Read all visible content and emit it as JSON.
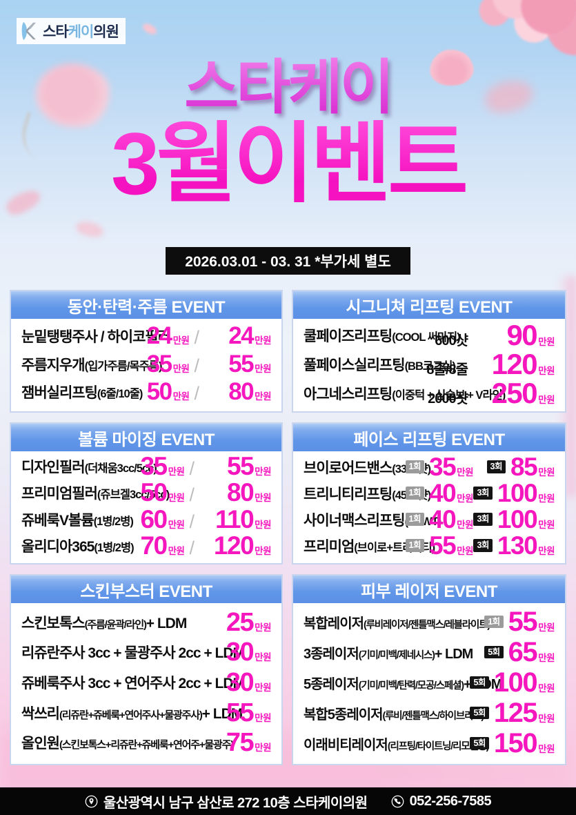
{
  "logo": {
    "star": "스타",
    "k": "케이",
    "clinic": "의원"
  },
  "title": {
    "line1": "스타케이",
    "line2": "3월이벤트"
  },
  "date_notice": "2026.03.01 - 03. 31 *부가세 별도",
  "unit": "만원",
  "colors": {
    "price_magenta": "#f517bd",
    "header_blue": "#6096e8",
    "badge_gray": "#9b9b9b",
    "badge_black": "#141414",
    "title_pink": "#f713c4"
  },
  "panels": [
    {
      "title": "동안·탄력·주름 EVENT",
      "items": [
        {
          "name": "눈밑탱탱주사 / 하이코필러",
          "prices": [
            {
              "value": "24"
            },
            {
              "value": "24"
            }
          ]
        },
        {
          "name": "주름지우개",
          "sub": "(입가주름/목주름)",
          "prices": [
            {
              "value": "35"
            },
            {
              "value": "55"
            }
          ]
        },
        {
          "name": "잼버실리프팅",
          "sub": "(6줄/10줄)",
          "prices": [
            {
              "value": "50"
            },
            {
              "value": "80"
            }
          ]
        }
      ]
    },
    {
      "title": "시그니쳐 리프팅 EVENT",
      "items": [
        {
          "name": "쿨페이즈리프팅",
          "sub": "(COOL 써마지)",
          "qty": "600샷",
          "prices": [
            {
              "value": "90"
            }
          ]
        },
        {
          "name": "풀페이스실리프팅",
          "sub": "(BB코그실)",
          "qty": "8줄/8줄",
          "prices": [
            {
              "value": "120"
            }
          ]
        },
        {
          "name": "아그네스리프팅",
          "sub": "(이중턱 + 심술보 + V라인)",
          "qty": "2000샷",
          "prices": [
            {
              "value": "250"
            }
          ]
        }
      ]
    },
    {
      "title": "볼륨 마이징 EVENT",
      "items": [
        {
          "name": "디자인필러",
          "sub": "(더채움3cc/5cc)",
          "prices": [
            {
              "value": "35"
            },
            {
              "value": "55"
            }
          ]
        },
        {
          "name": "프리미엄필러",
          "sub": "(쥬브겔3cc/5cc)",
          "prices": [
            {
              "value": "50"
            },
            {
              "value": "80"
            }
          ]
        },
        {
          "name": "쥬베룩V볼륨",
          "sub": "(1병/2병)",
          "prices": [
            {
              "value": "60"
            },
            {
              "value": "110"
            }
          ]
        },
        {
          "name": "올리디아365",
          "sub": "(1병/2병)",
          "prices": [
            {
              "value": "70"
            },
            {
              "value": "120"
            }
          ]
        }
      ]
    },
    {
      "title": "페이스 리프팅 EVENT",
      "items": [
        {
          "name": "브이로어드밴스",
          "sub": "(3300샷)",
          "prices": [
            {
              "badge": "1회",
              "badge_color": "gray",
              "value": "35"
            },
            {
              "badge": "3회",
              "badge_color": "black",
              "value": "85"
            }
          ]
        },
        {
          "name": "트리니티리프팅",
          "sub": "(4500샷)",
          "prices": [
            {
              "badge": "1회",
              "badge_color": "gray",
              "value": "40"
            },
            {
              "badge": "3회",
              "badge_color": "black",
              "value": "100"
            }
          ]
        },
        {
          "name": "사이너맥스리프팅",
          "sub": "(ESWT)",
          "prices": [
            {
              "badge": "1회",
              "badge_color": "gray",
              "value": "40"
            },
            {
              "badge": "3회",
              "badge_color": "black",
              "value": "100"
            }
          ]
        },
        {
          "name": "프리미엄",
          "sub": "(브이로+트리니티)",
          "prices": [
            {
              "badge": "1회",
              "badge_color": "gray",
              "value": "55"
            },
            {
              "badge": "3회",
              "badge_color": "black",
              "value": "130"
            }
          ]
        }
      ]
    },
    {
      "title": "스킨부스터 EVENT",
      "items": [
        {
          "name": "스킨보톡스",
          "sub": "(주름/윤곽/라인)",
          "suffix": " + LDM",
          "prices": [
            {
              "value": "25"
            }
          ]
        },
        {
          "name": "리쥬란주사 3cc + 물광주사 2cc + LDM",
          "prices": [
            {
              "value": "30"
            }
          ]
        },
        {
          "name": "쥬베룩주사 3cc + 연어주사 2cc + LDM",
          "prices": [
            {
              "value": "30"
            }
          ]
        },
        {
          "name": "싹쓰리",
          "sub": "(리쥬란+쥬베룩+연어주사+물광주사)",
          "suffix": " + LDM",
          "prices": [
            {
              "value": "55"
            }
          ]
        },
        {
          "name": "올인원",
          "sub": "(스킨보톡스+리쥬란+쥬베룩+연어주+물광주)",
          "prices": [
            {
              "value": "75"
            }
          ]
        }
      ]
    },
    {
      "title": "피부 레이저 EVENT",
      "items": [
        {
          "name": "복합레이저",
          "sub": "(루비레이저/젠틀맥스/레블라이트)",
          "prices": [
            {
              "badge": "1회",
              "badge_color": "gray",
              "value": "55"
            }
          ]
        },
        {
          "name": "3종레이저",
          "sub": "(기미/미백/제네시스)",
          "suffix": " + LDM",
          "prices": [
            {
              "badge": "5회",
              "badge_color": "black",
              "value": "65"
            }
          ]
        },
        {
          "name": "5종레이저",
          "sub": "(기미/미백/탄력/모공/스페셜)",
          "suffix": " + LDM",
          "prices": [
            {
              "badge": "5회",
              "badge_color": "black",
              "value": "100"
            }
          ]
        },
        {
          "name": "복합5종레이저",
          "sub": "(루비/젠틀맥스/하이브리드)",
          "prices": [
            {
              "badge": "5회",
              "badge_color": "black",
              "value": "125"
            }
          ]
        },
        {
          "name": "이래비티레이저",
          "sub": "(리프팅/타이트닝/리모델링)",
          "prices": [
            {
              "badge": "5회",
              "badge_color": "black",
              "value": "150"
            }
          ]
        }
      ]
    }
  ],
  "footer": {
    "address": "울산광역시 남구 삼산로 272 10층 스타케이의원",
    "phone": "052-256-7585"
  }
}
